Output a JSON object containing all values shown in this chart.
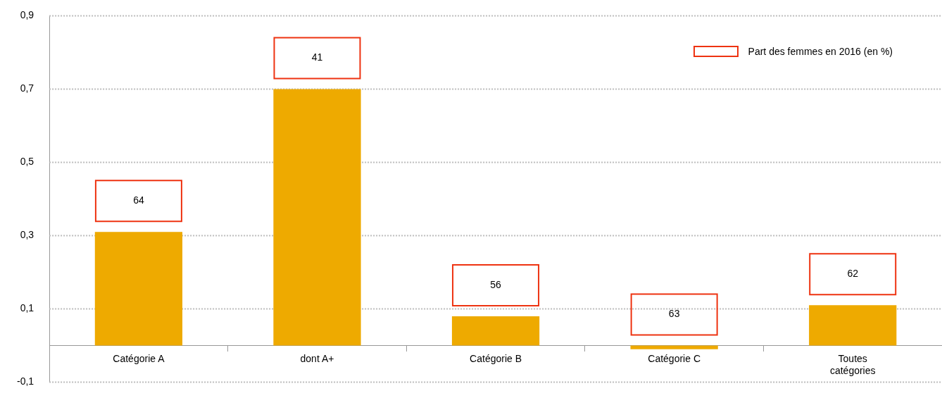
{
  "chart_data": {
    "type": "bar",
    "categories": [
      "Catégorie A",
      "dont A+",
      "Catégorie B",
      "Catégorie C",
      "Toutes catégories"
    ],
    "series": [
      {
        "color": "#eeaa00",
        "values": [
          0.31,
          0.7,
          0.08,
          -0.01,
          0.11
        ]
      }
    ],
    "annotations": [
      "64",
      "41",
      "56",
      "63",
      "62"
    ],
    "ylim": [
      -0.1,
      0.9
    ],
    "yticks": [
      {
        "value": -0.1,
        "label": "-0,1"
      },
      {
        "value": 0.1,
        "label": "0,1"
      },
      {
        "value": 0.3,
        "label": "0,3"
      },
      {
        "value": 0.5,
        "label": "0,5"
      },
      {
        "value": 0.7,
        "label": "0,7"
      },
      {
        "value": 0.9,
        "label": "0,9"
      }
    ],
    "legend_title": "Part des femmes en 2016 (en %)",
    "grid": "y"
  }
}
